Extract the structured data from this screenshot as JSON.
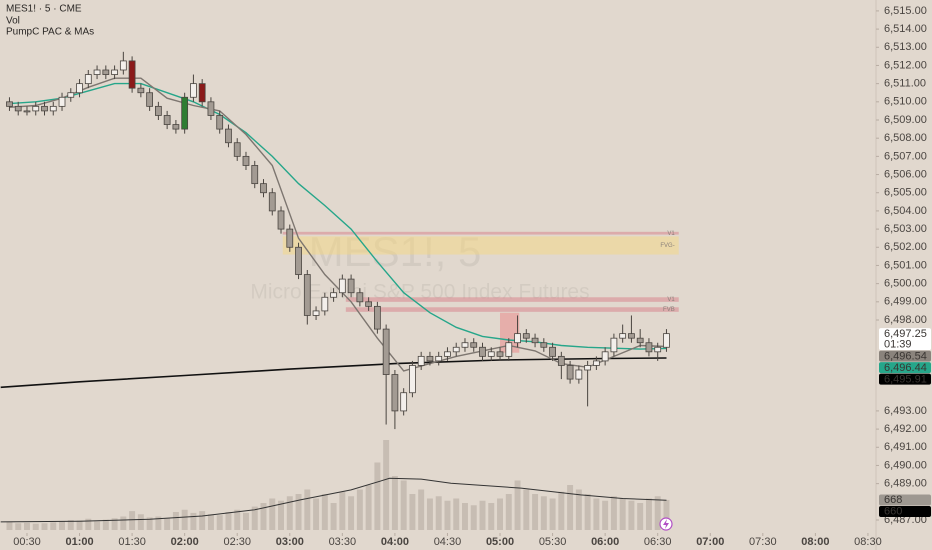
{
  "chart_data": {
    "type": "candlestick",
    "symbol": "MES1! · 5 · CME",
    "indicators": [
      "Vol",
      "PumpC PAC & MAs"
    ],
    "watermark": "MES1!, 5",
    "watermark_subtitle": "Micro E-mini S&P 500 Index Futures",
    "x": [
      20,
      25,
      30,
      35,
      40,
      45,
      50,
      55,
      60,
      65,
      70,
      75,
      80,
      85,
      90,
      95,
      100,
      105,
      110,
      115,
      120,
      125,
      130,
      135,
      140,
      145,
      150,
      155,
      160,
      165,
      170,
      175,
      180,
      185,
      190,
      195,
      200,
      205,
      210,
      215,
      220,
      225,
      230,
      235,
      240,
      245,
      250,
      255,
      260,
      265,
      270,
      275,
      280,
      285,
      290,
      295,
      300,
      305,
      310,
      315,
      320,
      325,
      330,
      335,
      340,
      345,
      350,
      355,
      360,
      365,
      370,
      375,
      380,
      385,
      390,
      395
    ],
    "open": [
      6510,
      6509.75,
      6509.5,
      6509.5,
      6509.75,
      6509.5,
      6509.75,
      6510.25,
      6510.5,
      6511,
      6511.5,
      6511.75,
      6511.5,
      6511.75,
      6512.25,
      6510.75,
      6510.5,
      6509.75,
      6509.25,
      6508.75,
      6508.5,
      6510.25,
      6511,
      6510,
      6509.25,
      6508.5,
      6507.75,
      6507,
      6506.5,
      6505.5,
      6505,
      6504,
      6503,
      6502,
      6500.5,
      6498.25,
      6498.5,
      6499.25,
      6499.5,
      6500.25,
      6499.5,
      6499,
      6498.75,
      6497.5,
      6495,
      6493,
      6494,
      6495.5,
      6496,
      6495.75,
      6496,
      6496.25,
      6496.5,
      6496.75,
      6496.5,
      6496,
      6496.25,
      6496,
      6496.75,
      6497.25,
      6497,
      6496.75,
      6496.5,
      6496,
      6495.5,
      6494.75,
      6495.25,
      6495.5,
      6495.75,
      6496.25,
      6497,
      6497.25,
      6497,
      6496.75,
      6496.25,
      6496.5
    ],
    "high": [
      6510.25,
      6510,
      6509.75,
      6510,
      6510,
      6510,
      6510.5,
      6510.75,
      6511.25,
      6511.75,
      6512,
      6512,
      6512,
      6512.75,
      6512.5,
      6511,
      6510.75,
      6510,
      6509.5,
      6509,
      6510.5,
      6511.5,
      6511.25,
      6510.25,
      6509.5,
      6508.75,
      6508,
      6507.25,
      6506.75,
      6505.75,
      6505.25,
      6504.25,
      6503.25,
      6502.25,
      6500.75,
      6498.75,
      6499.5,
      6499.75,
      6500.5,
      6500.5,
      6499.75,
      6499.25,
      6499,
      6497.75,
      6495.25,
      6494.25,
      6495.75,
      6496.25,
      6496.25,
      6496.25,
      6496.5,
      6496.75,
      6497,
      6497,
      6496.75,
      6496.5,
      6496.5,
      6497,
      6498.25,
      6497.5,
      6497.25,
      6497,
      6496.75,
      6496.25,
      6495.75,
      6495.5,
      6495.75,
      6496,
      6496.5,
      6497.25,
      6497.75,
      6498.25,
      6497.5,
      6497,
      6496.75,
      6497.5
    ],
    "low": [
      6509.5,
      6509.25,
      6509.25,
      6509.25,
      6509.25,
      6509.25,
      6509.5,
      6510,
      6510.25,
      6510.75,
      6511.25,
      6511.25,
      6511.25,
      6511.5,
      6510.5,
      6510.25,
      6509.5,
      6509,
      6508.5,
      6508.25,
      6508.25,
      6510,
      6509.75,
      6509,
      6508.25,
      6507.5,
      6506.75,
      6506.25,
      6505.25,
      6504.75,
      6503.75,
      6502.75,
      6501.75,
      6500.25,
      6497.75,
      6498,
      6498.25,
      6499,
      6499.25,
      6499.25,
      6498.75,
      6498.5,
      6497.25,
      6492.25,
      6492,
      6492.75,
      6493.75,
      6495.25,
      6495.5,
      6495.5,
      6495.75,
      6496,
      6496.25,
      6496.25,
      6495.75,
      6495.75,
      6495.75,
      6495.75,
      6496.5,
      6496.75,
      6496.5,
      6496.25,
      6495.75,
      6494.75,
      6494.5,
      6494.5,
      6493.25,
      6495.25,
      6495.5,
      6496,
      6496.75,
      6496.75,
      6496.5,
      6496,
      6495.75,
      6496.25
    ],
    "close": [
      6509.75,
      6509.5,
      6509.5,
      6509.75,
      6509.5,
      6509.75,
      6510.25,
      6510.5,
      6511,
      6511.5,
      6511.75,
      6511.5,
      6511.75,
      6512.25,
      6510.75,
      6510.5,
      6509.75,
      6509.25,
      6508.75,
      6508.5,
      6510.25,
      6511,
      6510,
      6509.25,
      6508.5,
      6507.75,
      6507,
      6506.5,
      6505.5,
      6505,
      6504,
      6503,
      6502,
      6500.5,
      6498.25,
      6498.5,
      6499.25,
      6499.5,
      6500.25,
      6499.5,
      6499,
      6498.75,
      6497.5,
      6495,
      6493,
      6494,
      6495.5,
      6496,
      6495.75,
      6496,
      6496.25,
      6496.5,
      6496.75,
      6496.5,
      6496,
      6496.25,
      6496,
      6496.75,
      6497.25,
      6497,
      6496.75,
      6496.5,
      6496,
      6495.5,
      6494.75,
      6495.25,
      6495.5,
      6495.75,
      6496.25,
      6497,
      6497.25,
      6497,
      6496.75,
      6496.25,
      6496.5,
      6497.25
    ],
    "volume": [
      180,
      150,
      160,
      140,
      150,
      170,
      200,
      220,
      210,
      250,
      190,
      230,
      260,
      300,
      420,
      350,
      280,
      300,
      260,
      400,
      450,
      380,
      420,
      350,
      330,
      400,
      450,
      380,
      520,
      600,
      700,
      650,
      750,
      800,
      900,
      700,
      800,
      600,
      850,
      750,
      900,
      1000,
      1500,
      2000,
      1200,
      1100,
      800,
      900,
      700,
      750,
      650,
      700,
      600,
      550,
      650,
      600,
      700,
      800,
      1100,
      900,
      800,
      750,
      700,
      850,
      1000,
      900,
      800,
      700,
      650,
      750,
      700,
      650,
      600,
      700,
      750,
      668
    ],
    "up_color": "#f3efeb",
    "down_color": "#a39b93",
    "wick_color": "#4a4540",
    "volume_color": "rgba(160,150,140,0.4)",
    "special_candles": [
      {
        "index": 14,
        "color": "#8b1a1a"
      },
      {
        "index": 20,
        "color": "#2e7d32"
      },
      {
        "index": 22,
        "color": "#8b1a1a"
      }
    ],
    "lines": [
      {
        "color": "#111111",
        "width": 1.6,
        "x": [
          15,
          60,
          120,
          180,
          240,
          300,
          360,
          395
        ],
        "values": [
          6494.3,
          6494.6,
          6494.95,
          6495.3,
          6495.6,
          6495.8,
          6495.88,
          6495.91
        ]
      },
      {
        "color": "#26a68a",
        "width": 1.4,
        "x": [
          20,
          35,
          50,
          65,
          80,
          95,
          110,
          125,
          140,
          155,
          170,
          185,
          200,
          215,
          230,
          245,
          260,
          275,
          290,
          305,
          320,
          335,
          350,
          365,
          380,
          395
        ],
        "values": [
          6509.9,
          6510.0,
          6510.2,
          6510.6,
          6511.0,
          6511.0,
          6510.5,
          6510.0,
          6509.3,
          6508.3,
          6507.0,
          6505.5,
          6504.3,
          6503.0,
          6501.2,
          6499.5,
          6498.4,
          6497.6,
          6497.1,
          6496.9,
          6496.8,
          6496.6,
          6496.5,
          6496.45,
          6496.4,
          6496.44
        ]
      },
      {
        "color": "#7d7670",
        "width": 1.4,
        "x": [
          20,
          35,
          50,
          65,
          80,
          95,
          110,
          125,
          140,
          155,
          170,
          185,
          200,
          215,
          230,
          245,
          260,
          275,
          290,
          305,
          320,
          335,
          350,
          365,
          380,
          395
        ],
        "values": [
          6509.7,
          6509.8,
          6510.2,
          6510.8,
          6511.3,
          6511.3,
          6510.2,
          6509.8,
          6509.5,
          6508.2,
          6506.5,
          6502.5,
          6500.5,
          6499.0,
          6497.0,
          6495.2,
          6495.6,
          6496.0,
          6496.3,
          6496.6,
          6496.3,
          6495.6,
          6495.4,
          6496.0,
          6496.6,
          6496.54
        ]
      },
      {
        "axis": "volume",
        "color": "#333333",
        "width": 1,
        "x": [
          15,
          60,
          100,
          130,
          160,
          186,
          215,
          237,
          255,
          272,
          312,
          346,
          370,
          395
        ],
        "values": [
          180,
          195,
          240,
          310,
          450,
          670,
          890,
          1150,
          1130,
          1040,
          930,
          780,
          700,
          660
        ]
      }
    ],
    "zones": [
      {
        "label": "FVG-",
        "top": 6502.6,
        "bottom": 6501.6,
        "start": 176,
        "end": 402,
        "color": "rgba(245,215,130,0.5)"
      },
      {
        "label": "V1",
        "top": 6502.85,
        "bottom": 6502.7,
        "start": 176,
        "end": 402,
        "color": "rgba(215,125,135,0.5)"
      },
      {
        "label": "V1",
        "top": 6499.25,
        "bottom": 6499.0,
        "start": 212,
        "end": 402,
        "color": "rgba(215,125,135,0.5)"
      },
      {
        "label": "FVB",
        "top": 6498.7,
        "bottom": 6498.45,
        "start": 212,
        "end": 402,
        "color": "rgba(215,125,135,0.5)"
      },
      {
        "top": 6498.4,
        "bottom": 6496.2,
        "start": 300,
        "end": 311,
        "color": "rgba(235,140,140,0.55)"
      }
    ],
    "xlim": [
      14.6,
      514.6
    ],
    "ylim": [
      6486.45,
      6515.6
    ],
    "vol_ylim": [
      0,
      2400
    ],
    "xticks": [
      {
        "value": 30,
        "label": "00:30"
      },
      {
        "value": 60,
        "label": "01:00"
      },
      {
        "value": 90,
        "label": "01:30"
      },
      {
        "value": 120,
        "label": "02:00"
      },
      {
        "value": 150,
        "label": "02:30"
      },
      {
        "value": 180,
        "label": "03:00"
      },
      {
        "value": 210,
        "label": "03:30"
      },
      {
        "value": 240,
        "label": "04:00"
      },
      {
        "value": 270,
        "label": "04:30"
      },
      {
        "value": 300,
        "label": "05:00"
      },
      {
        "value": 330,
        "label": "05:30"
      },
      {
        "value": 360,
        "label": "06:00"
      },
      {
        "value": 390,
        "label": "06:30"
      },
      {
        "value": 420,
        "label": "07:00"
      },
      {
        "value": 450,
        "label": "07:30"
      },
      {
        "value": 480,
        "label": "08:00"
      },
      {
        "value": 510,
        "label": "08:30"
      }
    ],
    "yticks": [
      {
        "value": 6515,
        "label": "6,515.00"
      },
      {
        "value": 6514,
        "label": "6,514.00"
      },
      {
        "value": 6513,
        "label": "6,513.00"
      },
      {
        "value": 6512,
        "label": "6,512.00"
      },
      {
        "value": 6511,
        "label": "6,511.00"
      },
      {
        "value": 6510,
        "label": "6,510.00"
      },
      {
        "value": 6509,
        "label": "6,509.00"
      },
      {
        "value": 6508,
        "label": "6,508.00"
      },
      {
        "value": 6507,
        "label": "6,507.00"
      },
      {
        "value": 6506,
        "label": "6,506.00"
      },
      {
        "value": 6505,
        "label": "6,505.00"
      },
      {
        "value": 6504,
        "label": "6,504.00"
      },
      {
        "value": 6503,
        "label": "6,503.00"
      },
      {
        "value": 6502,
        "label": "6,502.00"
      },
      {
        "value": 6501,
        "label": "6,501.00"
      },
      {
        "value": 6500,
        "label": "6,500.00"
      },
      {
        "value": 6499,
        "label": "6,499.00"
      },
      {
        "value": 6498,
        "label": "6,498.00"
      },
      {
        "value": 6493,
        "label": "6,493.00"
      },
      {
        "value": 6492,
        "label": "6,492.00"
      },
      {
        "value": 6491,
        "label": "6,491.00"
      },
      {
        "value": 6490,
        "label": "6,490.00"
      },
      {
        "value": 6489,
        "label": "6,489.00"
      },
      {
        "value": 6487,
        "label": "6,487.00"
      }
    ],
    "price_tags": [
      {
        "value": 6497.25,
        "label": "6,497.25",
        "bg": "#ffffff",
        "fg": "#131722"
      },
      {
        "value": 6496.54,
        "label": "6,496.54",
        "bg": "#8a837c",
        "fg": "#ffffff"
      },
      {
        "value": 6496.44,
        "label": "6,496.44",
        "bg": "#26a68a",
        "fg": "#ffffff"
      },
      {
        "value": 6495.91,
        "label": "6,495.91",
        "bg": "#000000",
        "fg": "#ffffff"
      }
    ],
    "countdown": "01:39",
    "volume_tags": [
      {
        "value": 668,
        "label": "668",
        "bg": "#9e9891",
        "fg": "#ffffff"
      },
      {
        "value": 660,
        "label": "660",
        "bg": "#000000",
        "fg": "#ffffff"
      }
    ]
  }
}
